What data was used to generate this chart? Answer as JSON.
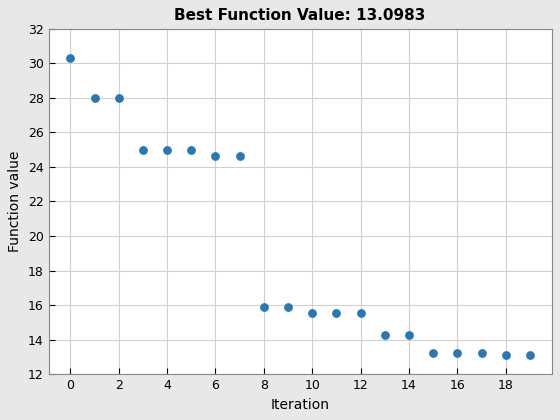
{
  "x": [
    0,
    1,
    2,
    3,
    4,
    5,
    6,
    7,
    8,
    9,
    10,
    11,
    12,
    13,
    14,
    15,
    16,
    17,
    18,
    19
  ],
  "y": [
    30.3,
    28.0,
    28.0,
    25.0,
    25.0,
    25.0,
    24.65,
    24.65,
    15.9,
    15.9,
    15.55,
    15.55,
    15.55,
    14.3,
    14.3,
    13.25,
    13.25,
    13.25,
    13.1,
    13.1
  ],
  "title": "Best Function Value: 13.0983",
  "xlabel": "Iteration",
  "ylabel": "Function value",
  "xlim": [
    -0.9,
    19.9
  ],
  "ylim": [
    12,
    32
  ],
  "yticks": [
    12,
    14,
    16,
    18,
    20,
    22,
    24,
    26,
    28,
    30,
    32
  ],
  "xticks": [
    0,
    2,
    4,
    6,
    8,
    10,
    12,
    14,
    16,
    18
  ],
  "dot_color": "#2878b5",
  "dot_size": 28,
  "outer_background": "#e8e8e8",
  "axes_background": "#ffffff",
  "grid_color": "#d0d0d0",
  "grid_linewidth": 0.8,
  "title_fontsize": 11,
  "label_fontsize": 10,
  "tick_fontsize": 9
}
